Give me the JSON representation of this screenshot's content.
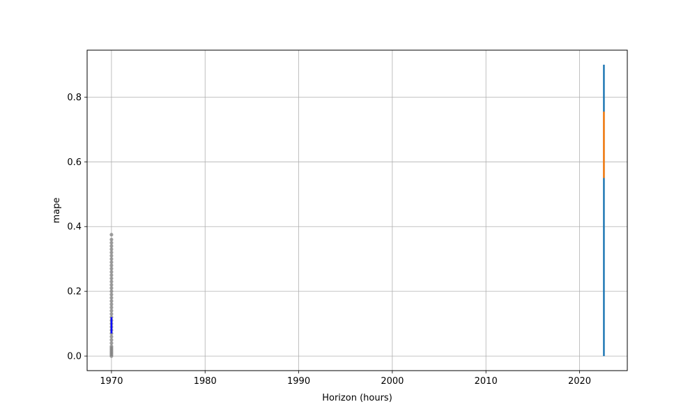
{
  "chart_data": {
    "type": "scatter",
    "title": "",
    "xlabel": "Horizon (hours)",
    "ylabel": "mape",
    "xlim": [
      1967.4,
      2025.1
    ],
    "ylim": [
      -0.045,
      0.945
    ],
    "x_ticks": [
      1970,
      1980,
      1990,
      2000,
      2010,
      2020
    ],
    "x_tick_labels": [
      "1970",
      "1980",
      "1990",
      "2000",
      "2010",
      "2020"
    ],
    "y_ticks": [
      0.0,
      0.2,
      0.4,
      0.6,
      0.8
    ],
    "y_tick_labels": [
      "0.0",
      "0.2",
      "0.4",
      "0.6",
      "0.8"
    ],
    "grid": true,
    "series": [
      {
        "kind": "points",
        "color": "#808080",
        "x": 1970.0,
        "y": [
          0.0,
          0.005,
          0.01,
          0.015,
          0.02,
          0.025,
          0.03,
          0.04,
          0.05,
          0.06,
          0.07,
          0.08,
          0.09,
          0.1,
          0.11,
          0.12,
          0.13,
          0.14,
          0.15,
          0.16,
          0.17,
          0.18,
          0.19,
          0.2,
          0.21,
          0.22,
          0.23,
          0.24,
          0.25,
          0.26,
          0.27,
          0.28,
          0.29,
          0.3,
          0.31,
          0.32,
          0.33,
          0.34,
          0.35,
          0.36,
          0.375
        ]
      },
      {
        "kind": "segment",
        "color": "#0000ff",
        "x": 1970.0,
        "y": [
          0.07,
          0.12
        ]
      },
      {
        "kind": "segment",
        "color": "#1f77b4",
        "x": 2022.6,
        "y": [
          0.0,
          0.9
        ]
      },
      {
        "kind": "segment",
        "color": "#ff7f0e",
        "x": 2022.6,
        "y": [
          0.55,
          0.755
        ]
      }
    ]
  }
}
